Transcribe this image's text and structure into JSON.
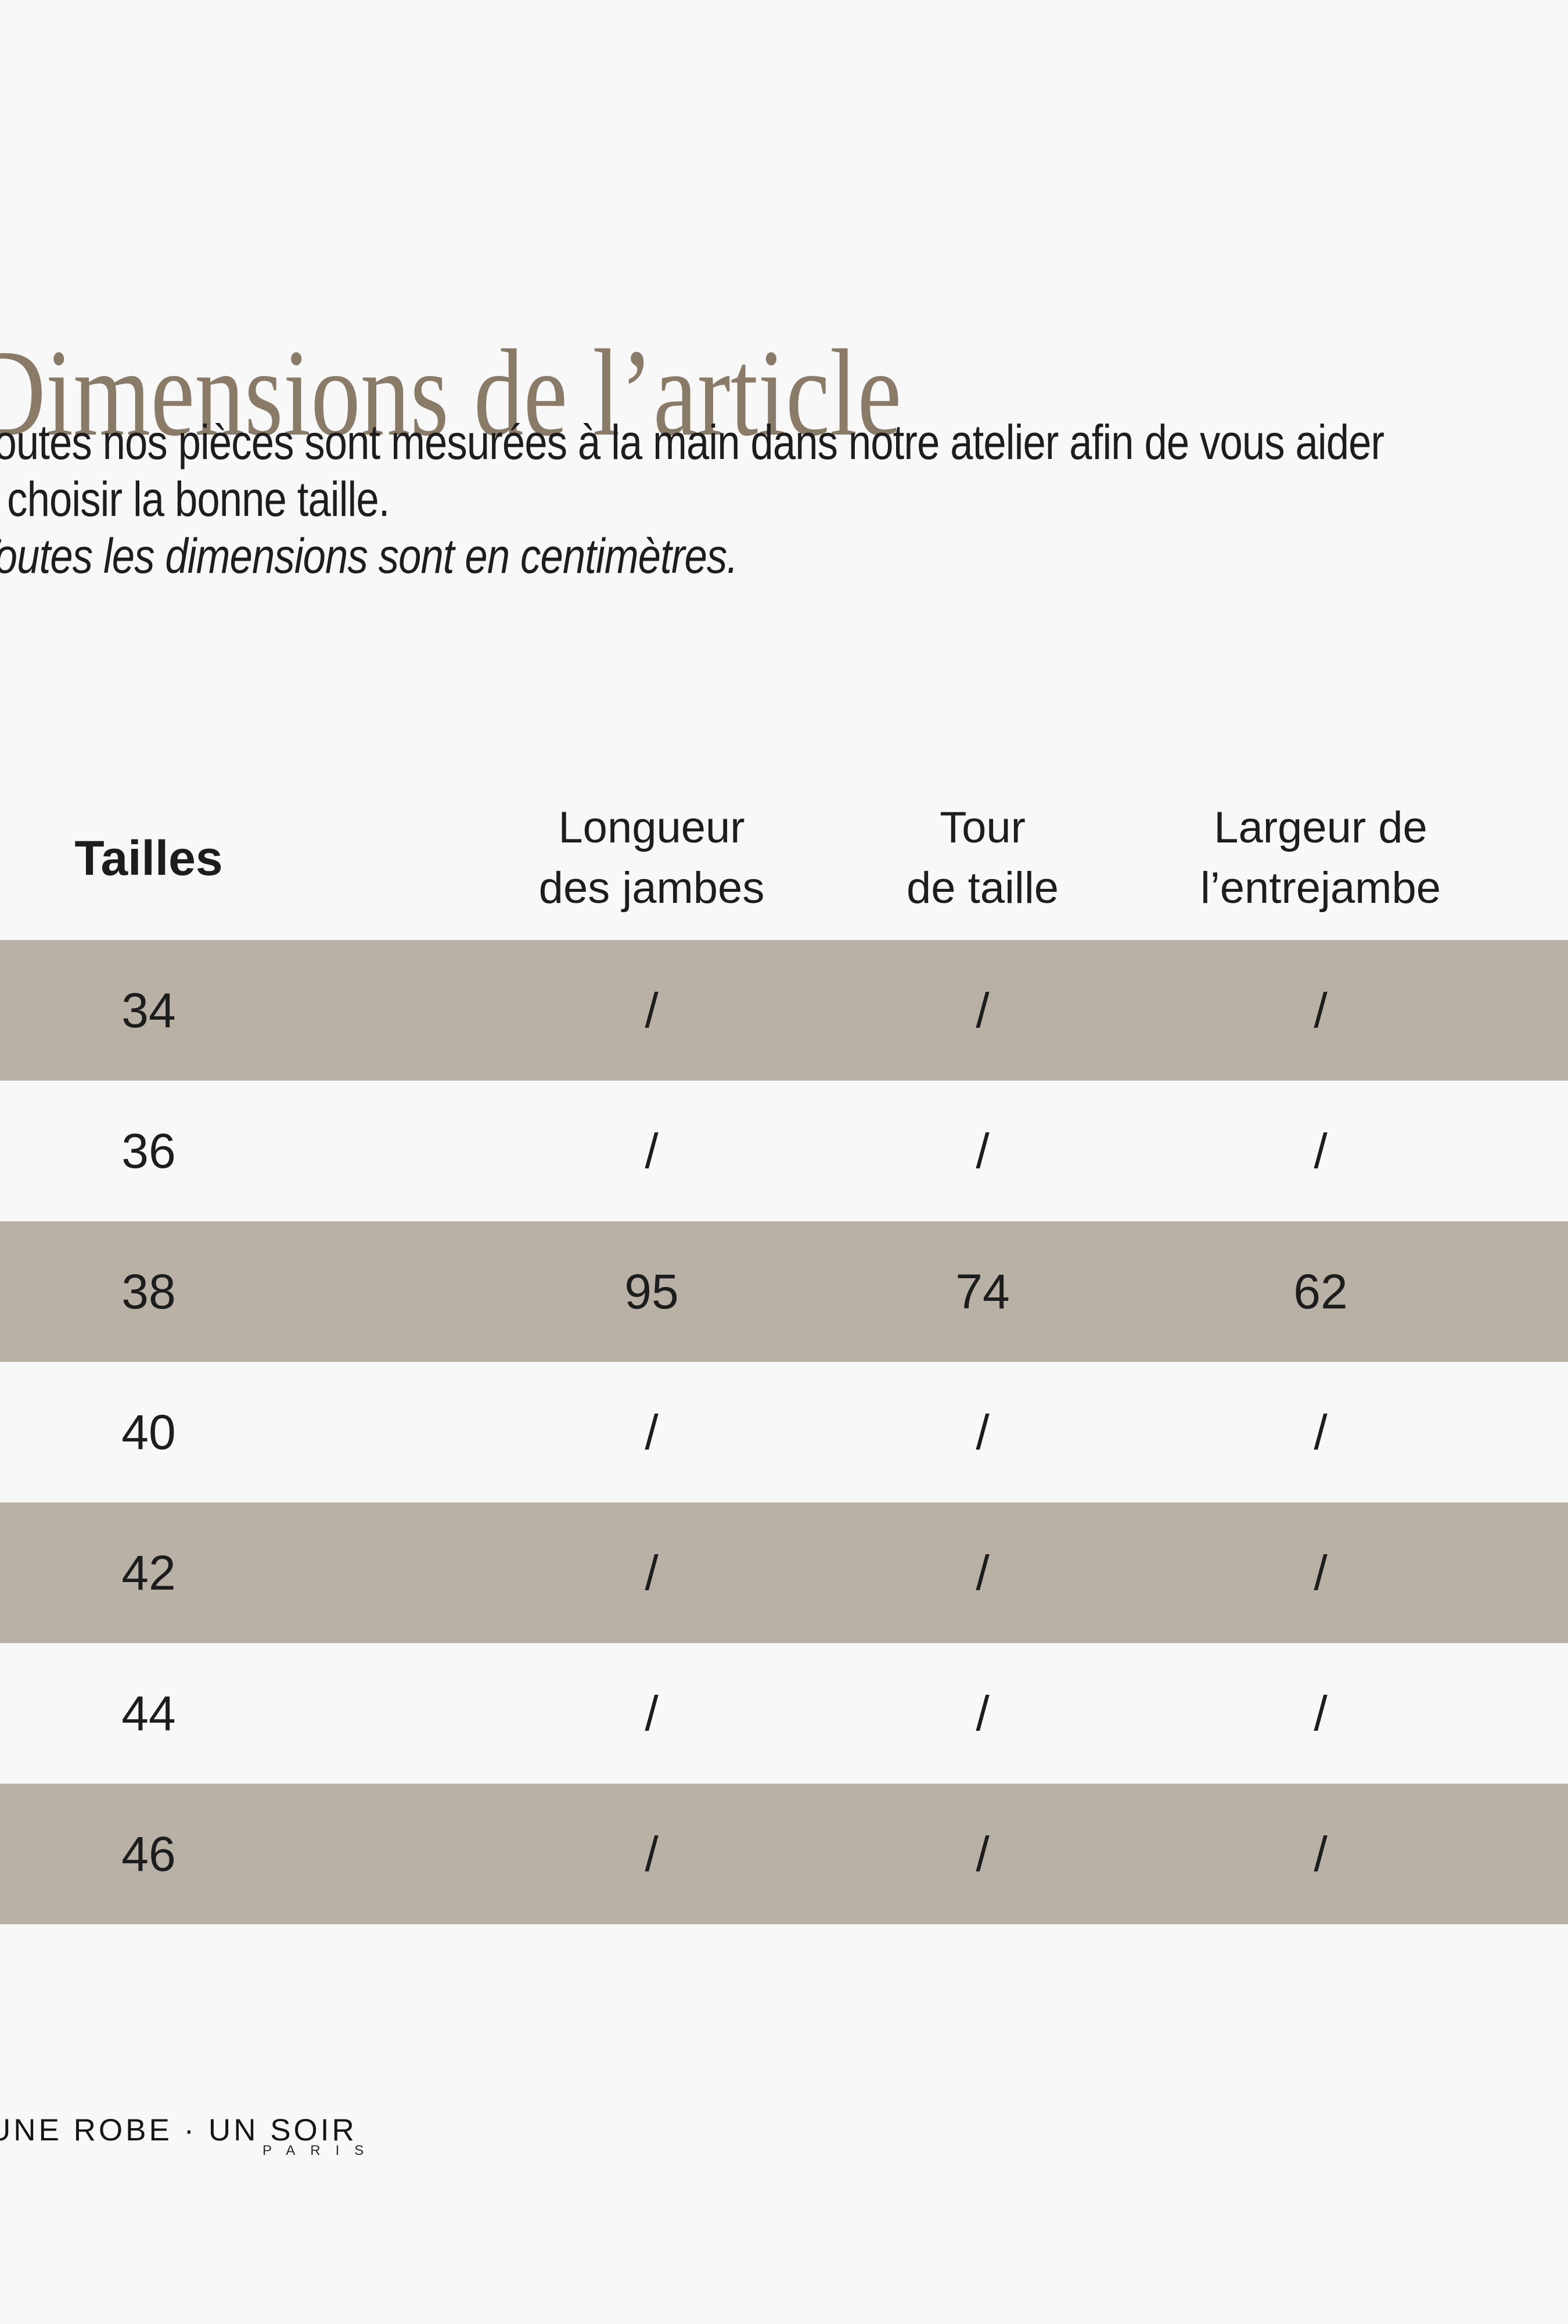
{
  "page": {
    "background": "#f8f8f8",
    "accent_color": "#8a7b69",
    "band_color": "#b9b1a5",
    "text_color": "#1d1d1e"
  },
  "title": {
    "text": "Dimensions de l’article"
  },
  "intro": {
    "line1": "Toutes nos pièces sont mesurées à la main dans notre atelier afin de vous aider",
    "line2": "à choisir la bonne taille.",
    "note": "Toutes les dimensions sont en centimètres."
  },
  "table": {
    "size_header": "Tailles",
    "columns": [
      "Longueur\ndes jambes",
      "Tour\nde taille",
      "Largeur de\nl’entrejambe"
    ],
    "rows": [
      {
        "size": "34",
        "values": [
          "/",
          "/",
          "/"
        ]
      },
      {
        "size": "36",
        "values": [
          "/",
          "/",
          "/"
        ]
      },
      {
        "size": "38",
        "values": [
          "95",
          "74",
          "62"
        ]
      },
      {
        "size": "40",
        "values": [
          "/",
          "/",
          "/"
        ]
      },
      {
        "size": "42",
        "values": [
          "/",
          "/",
          "/"
        ]
      },
      {
        "size": "44",
        "values": [
          "/",
          "/",
          "/"
        ]
      },
      {
        "size": "46",
        "values": [
          "/",
          "/",
          "/"
        ]
      }
    ]
  },
  "footer": {
    "logo": "UNE ROBE · UN SOIR",
    "logo_sub": "PARIS"
  }
}
